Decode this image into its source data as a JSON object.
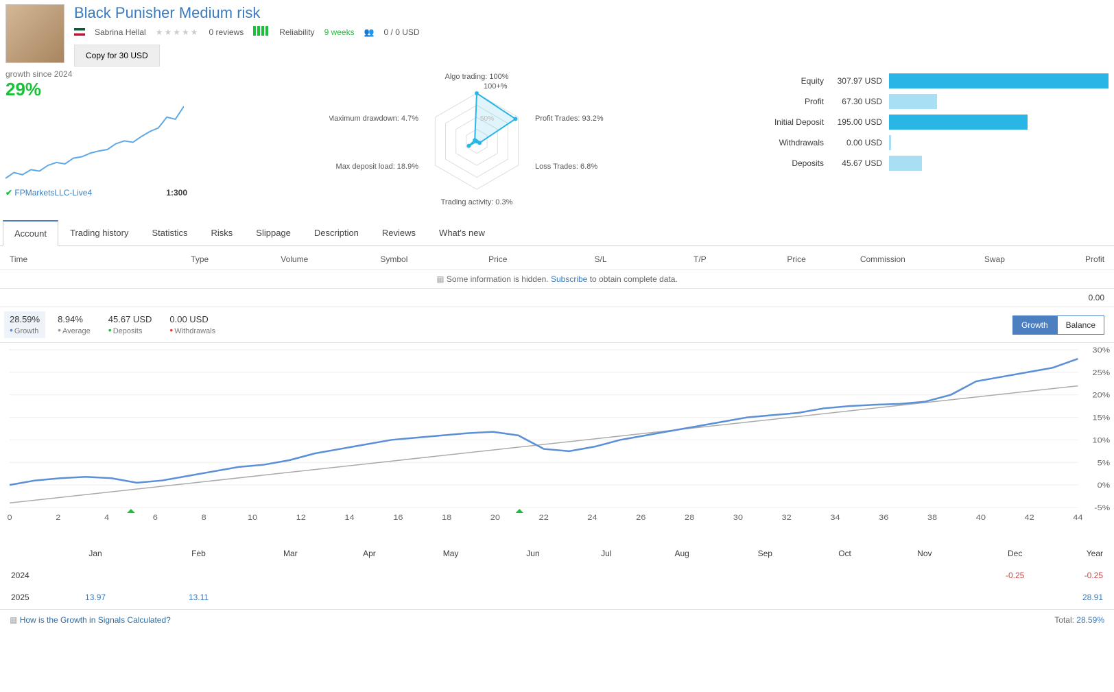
{
  "header": {
    "title": "Black Punisher Medium risk",
    "trader_name": "Sabrina Hellal",
    "reviews_label": "0 reviews",
    "reliability_label": "Reliability",
    "weeks_label": "9 weeks",
    "copier_stat": "0 / 0 USD",
    "copy_button": "Copy for 30 USD"
  },
  "growth": {
    "label": "growth since 2024",
    "value": "29%",
    "broker": "FPMarketsLLC-Live4",
    "leverage": "1:300",
    "spark": {
      "stroke": "#5fa8e6",
      "points": [
        0,
        8,
        5,
        12,
        10,
        18,
        22,
        20,
        28,
        30,
        35,
        38,
        40,
        48,
        52,
        50,
        58,
        65,
        70,
        85,
        82,
        100
      ]
    }
  },
  "radar": {
    "labels": {
      "algo": "Algo trading: 100%",
      "scale": "100+%",
      "scale50": "50%",
      "profit": "Profit Trades: 93.2%",
      "loss": "Loss Trades: 6.8%",
      "activity": "Trading activity: 0.3%",
      "deposit": "Max deposit load: 18.9%",
      "drawdown": "Maximum drawdown: 4.7%"
    },
    "stroke": "#29b6e6",
    "fill": "rgba(41,182,230,0.15)",
    "values": [
      100,
      93.2,
      6.8,
      0.3,
      18.9,
      4.7
    ]
  },
  "bars": {
    "max_width": 100,
    "rows": [
      {
        "label": "Equity",
        "value": "307.97 USD",
        "pct": 100,
        "color": "#29b6e6"
      },
      {
        "label": "Profit",
        "value": "67.30 USD",
        "pct": 22,
        "color": "#a8dff5"
      },
      {
        "label": "Initial Deposit",
        "value": "195.00 USD",
        "pct": 63,
        "color": "#29b6e6"
      },
      {
        "label": "Withdrawals",
        "value": "0.00 USD",
        "pct": 1,
        "color": "#a8dff5"
      },
      {
        "label": "Deposits",
        "value": "45.67 USD",
        "pct": 15,
        "color": "#a8dff5"
      }
    ]
  },
  "tabs": [
    "Account",
    "Trading history",
    "Statistics",
    "Risks",
    "Slippage",
    "Description",
    "Reviews",
    "What's new"
  ],
  "table_columns": [
    "Time",
    "Type",
    "Volume",
    "Symbol",
    "Price",
    "S/L",
    "T/P",
    "Price",
    "Commission",
    "Swap",
    "Profit"
  ],
  "hidden_info_pre": "Some information is hidden. ",
  "hidden_info_link": "Subscribe",
  "hidden_info_post": " to obtain complete data.",
  "zero_value": "0.00",
  "stats": {
    "growth": {
      "v": "28.59%",
      "l": "Growth",
      "c": "#5b8fd6"
    },
    "average": {
      "v": "8.94%",
      "l": "Average",
      "c": "#999"
    },
    "deposits": {
      "v": "45.67 USD",
      "l": "Deposits",
      "c": "#18c139"
    },
    "withdrawals": {
      "v": "0.00 USD",
      "l": "Withdrawals",
      "c": "#d94444"
    }
  },
  "toggle": {
    "growth": "Growth",
    "balance": "Balance"
  },
  "mainchart": {
    "ylabels": [
      "30%",
      "25%",
      "20%",
      "15%",
      "10%",
      "5%",
      "0%",
      "-5%"
    ],
    "xticks": [
      "0",
      "2",
      "4",
      "6",
      "8",
      "10",
      "12",
      "14",
      "16",
      "18",
      "20",
      "22",
      "24",
      "26",
      "28",
      "30",
      "32",
      "34",
      "36",
      "38",
      "40",
      "42",
      "44"
    ],
    "grid": "#eee",
    "line_color": "#5b8fd6",
    "avg_color": "#aaa",
    "markers": [
      5,
      21
    ],
    "curve": [
      0,
      1,
      1.5,
      1.8,
      1.5,
      0.5,
      1,
      2,
      3,
      4,
      4.5,
      5.5,
      7,
      8,
      9,
      10,
      10.5,
      11,
      11.5,
      11.8,
      11,
      8,
      7.5,
      8.5,
      10,
      11,
      12,
      13,
      14,
      15,
      15.5,
      16,
      17,
      17.5,
      17.8,
      18,
      18.5,
      20,
      23,
      24,
      25,
      26,
      28
    ],
    "trend": [
      -4,
      22
    ]
  },
  "months": {
    "headers": [
      "Jan",
      "Feb",
      "Mar",
      "Apr",
      "May",
      "Jun",
      "Jul",
      "Aug",
      "Sep",
      "Oct",
      "Nov",
      "Dec",
      "Year"
    ],
    "rows": [
      {
        "year": "2024",
        "cells": [
          "",
          "",
          "",
          "",
          "",
          "",
          "",
          "",
          "",
          "",
          "",
          "-0.25",
          "-0.25"
        ],
        "neg": [
          11,
          12
        ]
      },
      {
        "year": "2025",
        "cells": [
          "13.97",
          "13.11",
          "",
          "",
          "",
          "",
          "",
          "",
          "",
          "",
          "",
          "",
          "28.91"
        ],
        "pos": [
          0,
          1,
          12
        ]
      }
    ]
  },
  "footer": {
    "link": "How is the Growth in Signals Calculated?",
    "total_label": "Total:",
    "total_value": "28.59%"
  }
}
